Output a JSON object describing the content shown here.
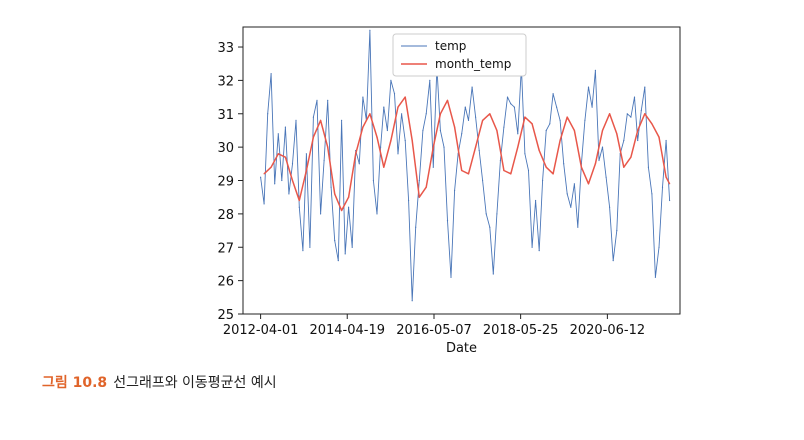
{
  "caption": {
    "figure_label": "그림 10.8",
    "text": "선그래프와 이동평균선 예시"
  },
  "chart_data": {
    "type": "line",
    "xlabel": "Date",
    "ylabel": "",
    "x_tick_labels": [
      "2012-04-01",
      "2014-04-19",
      "2016-05-07",
      "2018-05-25",
      "2020-06-12"
    ],
    "x_range": [
      "2011-11-01",
      "2022-03-01"
    ],
    "ylim": [
      25,
      33.6
    ],
    "y_ticks": [
      25,
      26,
      27,
      28,
      29,
      30,
      31,
      32,
      33
    ],
    "grid": false,
    "legend_position": "top-center",
    "series": [
      {
        "name": "temp",
        "color": "#4a76b8",
        "style": "solid thin",
        "x": [
          "2012-04-01",
          "2012-05-01",
          "2012-06-01",
          "2012-07-01",
          "2012-08-01",
          "2012-09-01",
          "2012-10-01",
          "2012-11-01",
          "2012-12-01",
          "2013-01-01",
          "2013-02-01",
          "2013-03-01",
          "2013-04-01",
          "2013-05-01",
          "2013-06-01",
          "2013-07-01",
          "2013-08-01",
          "2013-09-01",
          "2013-10-01",
          "2013-11-01",
          "2013-12-01",
          "2014-01-01",
          "2014-02-01",
          "2014-03-01",
          "2014-04-01",
          "2014-05-01",
          "2014-06-01",
          "2014-07-01",
          "2014-08-01",
          "2014-09-01",
          "2014-10-01",
          "2014-11-01",
          "2014-12-01",
          "2015-01-01",
          "2015-02-01",
          "2015-03-01",
          "2015-04-01",
          "2015-05-01",
          "2015-06-01",
          "2015-07-01",
          "2015-08-01",
          "2015-09-01",
          "2015-10-01",
          "2015-11-01",
          "2015-12-01",
          "2016-01-01",
          "2016-02-01",
          "2016-03-01",
          "2016-04-01",
          "2016-05-01",
          "2016-06-01",
          "2016-07-01",
          "2016-08-01",
          "2016-09-01",
          "2016-10-01",
          "2016-11-01",
          "2016-12-01",
          "2017-01-01",
          "2017-02-01",
          "2017-03-01",
          "2017-04-01",
          "2017-05-01",
          "2017-06-01",
          "2017-07-01",
          "2017-08-01",
          "2017-09-01",
          "2017-10-01",
          "2017-11-01",
          "2017-12-01",
          "2018-01-01",
          "2018-02-01",
          "2018-03-01",
          "2018-04-01",
          "2018-05-01",
          "2018-06-01",
          "2018-07-01",
          "2018-08-01",
          "2018-09-01",
          "2018-10-01",
          "2018-11-01",
          "2018-12-01",
          "2019-01-01",
          "2019-02-01",
          "2019-03-01",
          "2019-04-01",
          "2019-05-01",
          "2019-06-01",
          "2019-07-01",
          "2019-08-01",
          "2019-09-01",
          "2019-10-01",
          "2019-11-01",
          "2019-12-01",
          "2020-01-01",
          "2020-02-01",
          "2020-03-01",
          "2020-04-01",
          "2020-05-01",
          "2020-06-01",
          "2020-07-01",
          "2020-08-01",
          "2020-09-01",
          "2020-10-01",
          "2020-11-01",
          "2020-12-01",
          "2021-01-01",
          "2021-02-01",
          "2021-03-01",
          "2021-04-01",
          "2021-05-01",
          "2021-06-01",
          "2021-07-01",
          "2021-08-01",
          "2021-09-01",
          "2021-10-01",
          "2021-11-01",
          "2021-12-01"
        ],
        "values": [
          29.1,
          28.3,
          31.0,
          32.2,
          28.9,
          30.4,
          29.0,
          30.6,
          28.6,
          29.5,
          30.8,
          28.2,
          26.9,
          29.8,
          27.0,
          30.9,
          31.4,
          28.0,
          29.6,
          31.4,
          28.8,
          27.2,
          26.6,
          30.8,
          26.8,
          28.2,
          27.0,
          29.9,
          29.5,
          31.5,
          30.8,
          33.5,
          29.0,
          28.0,
          30.0,
          31.2,
          30.5,
          32.0,
          31.6,
          29.8,
          31.0,
          30.2,
          28.4,
          25.4,
          27.6,
          29.0,
          30.5,
          31.0,
          32.0,
          29.4,
          32.4,
          30.5,
          30.0,
          27.8,
          26.1,
          28.7,
          29.8,
          30.4,
          31.2,
          30.8,
          31.8,
          30.9,
          29.9,
          29.0,
          28.0,
          27.6,
          26.2,
          28.0,
          29.6,
          30.6,
          31.5,
          31.3,
          31.2,
          30.4,
          32.4,
          29.8,
          29.3,
          27.0,
          28.4,
          26.9,
          29.0,
          30.5,
          30.7,
          31.6,
          31.2,
          30.8,
          29.5,
          28.6,
          28.2,
          28.9,
          27.6,
          29.5,
          30.8,
          31.8,
          31.2,
          32.3,
          29.6,
          30.0,
          29.1,
          28.2,
          26.6,
          27.5,
          29.8,
          30.2,
          31.0,
          30.9,
          31.5,
          30.2,
          31.1,
          31.8,
          29.4,
          28.6,
          26.1,
          27.0,
          28.8,
          30.2,
          28.4
        ]
      },
      {
        "name": "month_temp",
        "color": "#e8574a",
        "style": "solid",
        "x": [
          "2012-05-01",
          "2012-07-01",
          "2012-09-01",
          "2012-11-01",
          "2013-01-01",
          "2013-03-01",
          "2013-05-01",
          "2013-07-01",
          "2013-09-01",
          "2013-11-01",
          "2014-01-01",
          "2014-03-01",
          "2014-05-01",
          "2014-07-01",
          "2014-09-01",
          "2014-11-01",
          "2015-01-01",
          "2015-03-01",
          "2015-05-01",
          "2015-07-01",
          "2015-09-01",
          "2015-11-01",
          "2016-01-01",
          "2016-03-01",
          "2016-05-01",
          "2016-07-01",
          "2016-09-01",
          "2016-11-01",
          "2017-01-01",
          "2017-03-01",
          "2017-05-01",
          "2017-07-01",
          "2017-09-01",
          "2017-11-01",
          "2018-01-01",
          "2018-03-01",
          "2018-05-01",
          "2018-07-01",
          "2018-09-01",
          "2018-11-01",
          "2019-01-01",
          "2019-03-01",
          "2019-05-01",
          "2019-07-01",
          "2019-09-01",
          "2019-11-01",
          "2020-01-01",
          "2020-03-01",
          "2020-05-01",
          "2020-07-01",
          "2020-09-01",
          "2020-11-01",
          "2021-01-01",
          "2021-03-01",
          "2021-05-01",
          "2021-07-01",
          "2021-09-01",
          "2021-11-01",
          "2021-12-01"
        ],
        "values": [
          29.2,
          29.4,
          29.8,
          29.7,
          29.0,
          28.4,
          29.3,
          30.3,
          30.8,
          30.0,
          28.6,
          28.1,
          28.5,
          29.8,
          30.6,
          31.0,
          30.3,
          29.4,
          30.2,
          31.2,
          31.5,
          30.2,
          28.5,
          28.8,
          30.0,
          31.0,
          31.4,
          30.6,
          29.3,
          29.2,
          30.0,
          30.8,
          31.0,
          30.5,
          29.3,
          29.2,
          30.0,
          30.9,
          30.7,
          29.9,
          29.4,
          29.2,
          30.2,
          30.9,
          30.5,
          29.4,
          28.9,
          29.5,
          30.5,
          31.0,
          30.4,
          29.4,
          29.7,
          30.5,
          31.0,
          30.7,
          30.3,
          29.1,
          28.9
        ]
      }
    ]
  }
}
